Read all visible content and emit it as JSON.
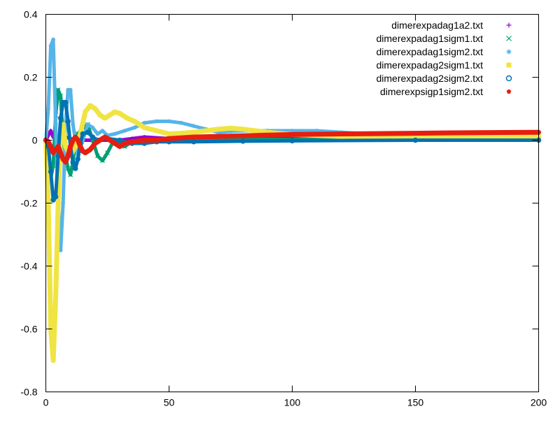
{
  "chart_data": {
    "type": "scatter",
    "title": "",
    "xlabel": "",
    "ylabel": "",
    "xlim": [
      0,
      200
    ],
    "ylim": [
      -0.8,
      0.4
    ],
    "xticks": [
      0,
      50,
      100,
      150,
      200
    ],
    "yticks": [
      -0.8,
      -0.6,
      -0.4,
      -0.2,
      0,
      0.2,
      0.4
    ],
    "xtick_labels": [
      "0",
      "50",
      "100",
      "150",
      "200"
    ],
    "ytick_labels": [
      "-0.8",
      "-0.6",
      "-0.4",
      "-0.2",
      "0",
      "0.2",
      "0.4"
    ],
    "grid": false,
    "legend_position": "top-right",
    "series": [
      {
        "name": "dimerexpadag1a2.txt",
        "marker": "+",
        "color": "#9400d3",
        "points": [
          [
            0,
            0
          ],
          [
            2,
            0.03
          ],
          [
            3,
            0.01
          ],
          [
            5,
            -0.01
          ],
          [
            8,
            0.01
          ],
          [
            12,
            0.0
          ],
          [
            20,
            0.0
          ],
          [
            30,
            0.0
          ],
          [
            35,
            0.005
          ],
          [
            40,
            0.01
          ],
          [
            50,
            0.005
          ],
          [
            60,
            0.005
          ],
          [
            80,
            0.005
          ],
          [
            100,
            0.008
          ],
          [
            120,
            0.01
          ],
          [
            150,
            0.01
          ],
          [
            200,
            0.01
          ]
        ]
      },
      {
        "name": "dimerexpadag1sigm1.txt",
        "marker": "x",
        "color": "#009e73",
        "points": [
          [
            0,
            0
          ],
          [
            1,
            -0.05
          ],
          [
            2,
            -0.12
          ],
          [
            3,
            -0.08
          ],
          [
            4,
            0.08
          ],
          [
            5,
            0.16
          ],
          [
            6,
            0.14
          ],
          [
            7,
            0.0
          ],
          [
            8,
            -0.05
          ],
          [
            9,
            -0.09
          ],
          [
            10,
            -0.11
          ],
          [
            11,
            -0.07
          ],
          [
            12,
            0.0
          ],
          [
            13,
            0.02
          ],
          [
            15,
            0.04
          ],
          [
            17,
            0.05
          ],
          [
            19,
            0.0
          ],
          [
            21,
            -0.05
          ],
          [
            23,
            -0.065
          ],
          [
            25,
            -0.04
          ],
          [
            27,
            -0.01
          ],
          [
            30,
            -0.01
          ],
          [
            32,
            -0.02
          ],
          [
            34,
            -0.01
          ],
          [
            37,
            -0.005
          ],
          [
            40,
            0.0
          ],
          [
            50,
            0.003
          ],
          [
            60,
            0.002
          ],
          [
            80,
            0.002
          ],
          [
            100,
            0.002
          ],
          [
            150,
            0.003
          ],
          [
            200,
            0.003
          ]
        ]
      },
      {
        "name": "dimerexpadag1sigm2.txt",
        "marker": "*",
        "color": "#56b4e9",
        "points": [
          [
            0,
            0
          ],
          [
            1,
            0.1
          ],
          [
            2,
            0.3
          ],
          [
            3,
            0.32
          ],
          [
            4,
            0.05
          ],
          [
            5,
            -0.2
          ],
          [
            6,
            -0.35
          ],
          [
            7,
            -0.2
          ],
          [
            8,
            0.05
          ],
          [
            9,
            0.16
          ],
          [
            10,
            0.16
          ],
          [
            11,
            0.05
          ],
          [
            13,
            -0.05
          ],
          [
            15,
            0.0
          ],
          [
            17,
            0.05
          ],
          [
            19,
            0.04
          ],
          [
            21,
            0.02
          ],
          [
            23,
            0.03
          ],
          [
            25,
            0.015
          ],
          [
            28,
            0.02
          ],
          [
            32,
            0.03
          ],
          [
            36,
            0.04
          ],
          [
            40,
            0.055
          ],
          [
            45,
            0.06
          ],
          [
            50,
            0.06
          ],
          [
            55,
            0.055
          ],
          [
            60,
            0.045
          ],
          [
            65,
            0.035
          ],
          [
            70,
            0.025
          ],
          [
            75,
            0.028
          ],
          [
            80,
            0.03
          ],
          [
            90,
            0.03
          ],
          [
            100,
            0.03
          ],
          [
            110,
            0.03
          ],
          [
            120,
            0.025
          ],
          [
            130,
            0.02
          ],
          [
            150,
            0.015
          ],
          [
            175,
            0.01
          ],
          [
            200,
            0.005
          ]
        ]
      },
      {
        "name": "dimerexpadag2sigm1.txt",
        "marker": "square",
        "color": "#f0e442",
        "points": [
          [
            0,
            0
          ],
          [
            1,
            -0.2
          ],
          [
            2,
            -0.6
          ],
          [
            3,
            -0.7
          ],
          [
            4,
            -0.5
          ],
          [
            5,
            -0.2
          ],
          [
            6,
            0.02
          ],
          [
            7,
            0.05
          ],
          [
            8,
            -0.02
          ],
          [
            10,
            -0.05
          ],
          [
            12,
            -0.02
          ],
          [
            14,
            0.02
          ],
          [
            16,
            0.09
          ],
          [
            18,
            0.11
          ],
          [
            20,
            0.1
          ],
          [
            22,
            0.08
          ],
          [
            24,
            0.07
          ],
          [
            26,
            0.08
          ],
          [
            28,
            0.09
          ],
          [
            30,
            0.085
          ],
          [
            33,
            0.07
          ],
          [
            36,
            0.06
          ],
          [
            40,
            0.04
          ],
          [
            45,
            0.03
          ],
          [
            50,
            0.02
          ],
          [
            55,
            0.022
          ],
          [
            60,
            0.025
          ],
          [
            65,
            0.03
          ],
          [
            70,
            0.035
          ],
          [
            75,
            0.038
          ],
          [
            80,
            0.035
          ],
          [
            85,
            0.03
          ],
          [
            90,
            0.025
          ],
          [
            100,
            0.018
          ],
          [
            110,
            0.015
          ],
          [
            120,
            0.012
          ],
          [
            150,
            0.012
          ],
          [
            200,
            0.012
          ]
        ]
      },
      {
        "name": "dimerexpadag2sigm2.txt",
        "marker": "circle",
        "color": "#0072b2",
        "points": [
          [
            0,
            0
          ],
          [
            1,
            -0.02
          ],
          [
            2,
            -0.1
          ],
          [
            3,
            -0.19
          ],
          [
            4,
            -0.18
          ],
          [
            5,
            -0.05
          ],
          [
            6,
            0.07
          ],
          [
            7,
            0.12
          ],
          [
            8,
            0.12
          ],
          [
            9,
            0.06
          ],
          [
            10,
            -0.02
          ],
          [
            11,
            -0.07
          ],
          [
            12,
            -0.09
          ],
          [
            13,
            -0.06
          ],
          [
            14,
            -0.01
          ],
          [
            15,
            0.02
          ],
          [
            17,
            0.025
          ],
          [
            19,
            0.01
          ],
          [
            21,
            0.0
          ],
          [
            23,
            0.005
          ],
          [
            25,
            0.005
          ],
          [
            30,
            0.0
          ],
          [
            35,
            -0.01
          ],
          [
            40,
            -0.01
          ],
          [
            45,
            -0.005
          ],
          [
            50,
            -0.005
          ],
          [
            60,
            -0.005
          ],
          [
            80,
            -0.003
          ],
          [
            100,
            -0.002
          ],
          [
            150,
            0.0
          ],
          [
            200,
            0.0
          ]
        ]
      },
      {
        "name": "dimerexpsigp1sigm2.txt",
        "marker": "pentagon",
        "color": "#e51e10",
        "points": [
          [
            0,
            0
          ],
          [
            1,
            -0.005
          ],
          [
            2,
            -0.02
          ],
          [
            3,
            -0.04
          ],
          [
            4,
            -0.03
          ],
          [
            5,
            -0.02
          ],
          [
            6,
            -0.04
          ],
          [
            7,
            -0.06
          ],
          [
            8,
            -0.07
          ],
          [
            9,
            -0.05
          ],
          [
            10,
            -0.02
          ],
          [
            11,
            0.0
          ],
          [
            12,
            0.01
          ],
          [
            13,
            0.0
          ],
          [
            14,
            -0.02
          ],
          [
            15,
            -0.035
          ],
          [
            16,
            -0.04
          ],
          [
            17,
            -0.035
          ],
          [
            18,
            -0.03
          ],
          [
            19,
            -0.02
          ],
          [
            20,
            -0.01
          ],
          [
            22,
            0.0
          ],
          [
            24,
            0.01
          ],
          [
            26,
            0.0
          ],
          [
            28,
            -0.01
          ],
          [
            30,
            -0.02
          ],
          [
            32,
            -0.01
          ],
          [
            35,
            -0.005
          ],
          [
            40,
            0.0
          ],
          [
            45,
            0.0
          ],
          [
            50,
            0.005
          ],
          [
            60,
            0.01
          ],
          [
            70,
            0.012
          ],
          [
            80,
            0.014
          ],
          [
            90,
            0.016
          ],
          [
            100,
            0.018
          ],
          [
            120,
            0.02
          ],
          [
            150,
            0.022
          ],
          [
            175,
            0.024
          ],
          [
            200,
            0.025
          ]
        ]
      }
    ]
  }
}
